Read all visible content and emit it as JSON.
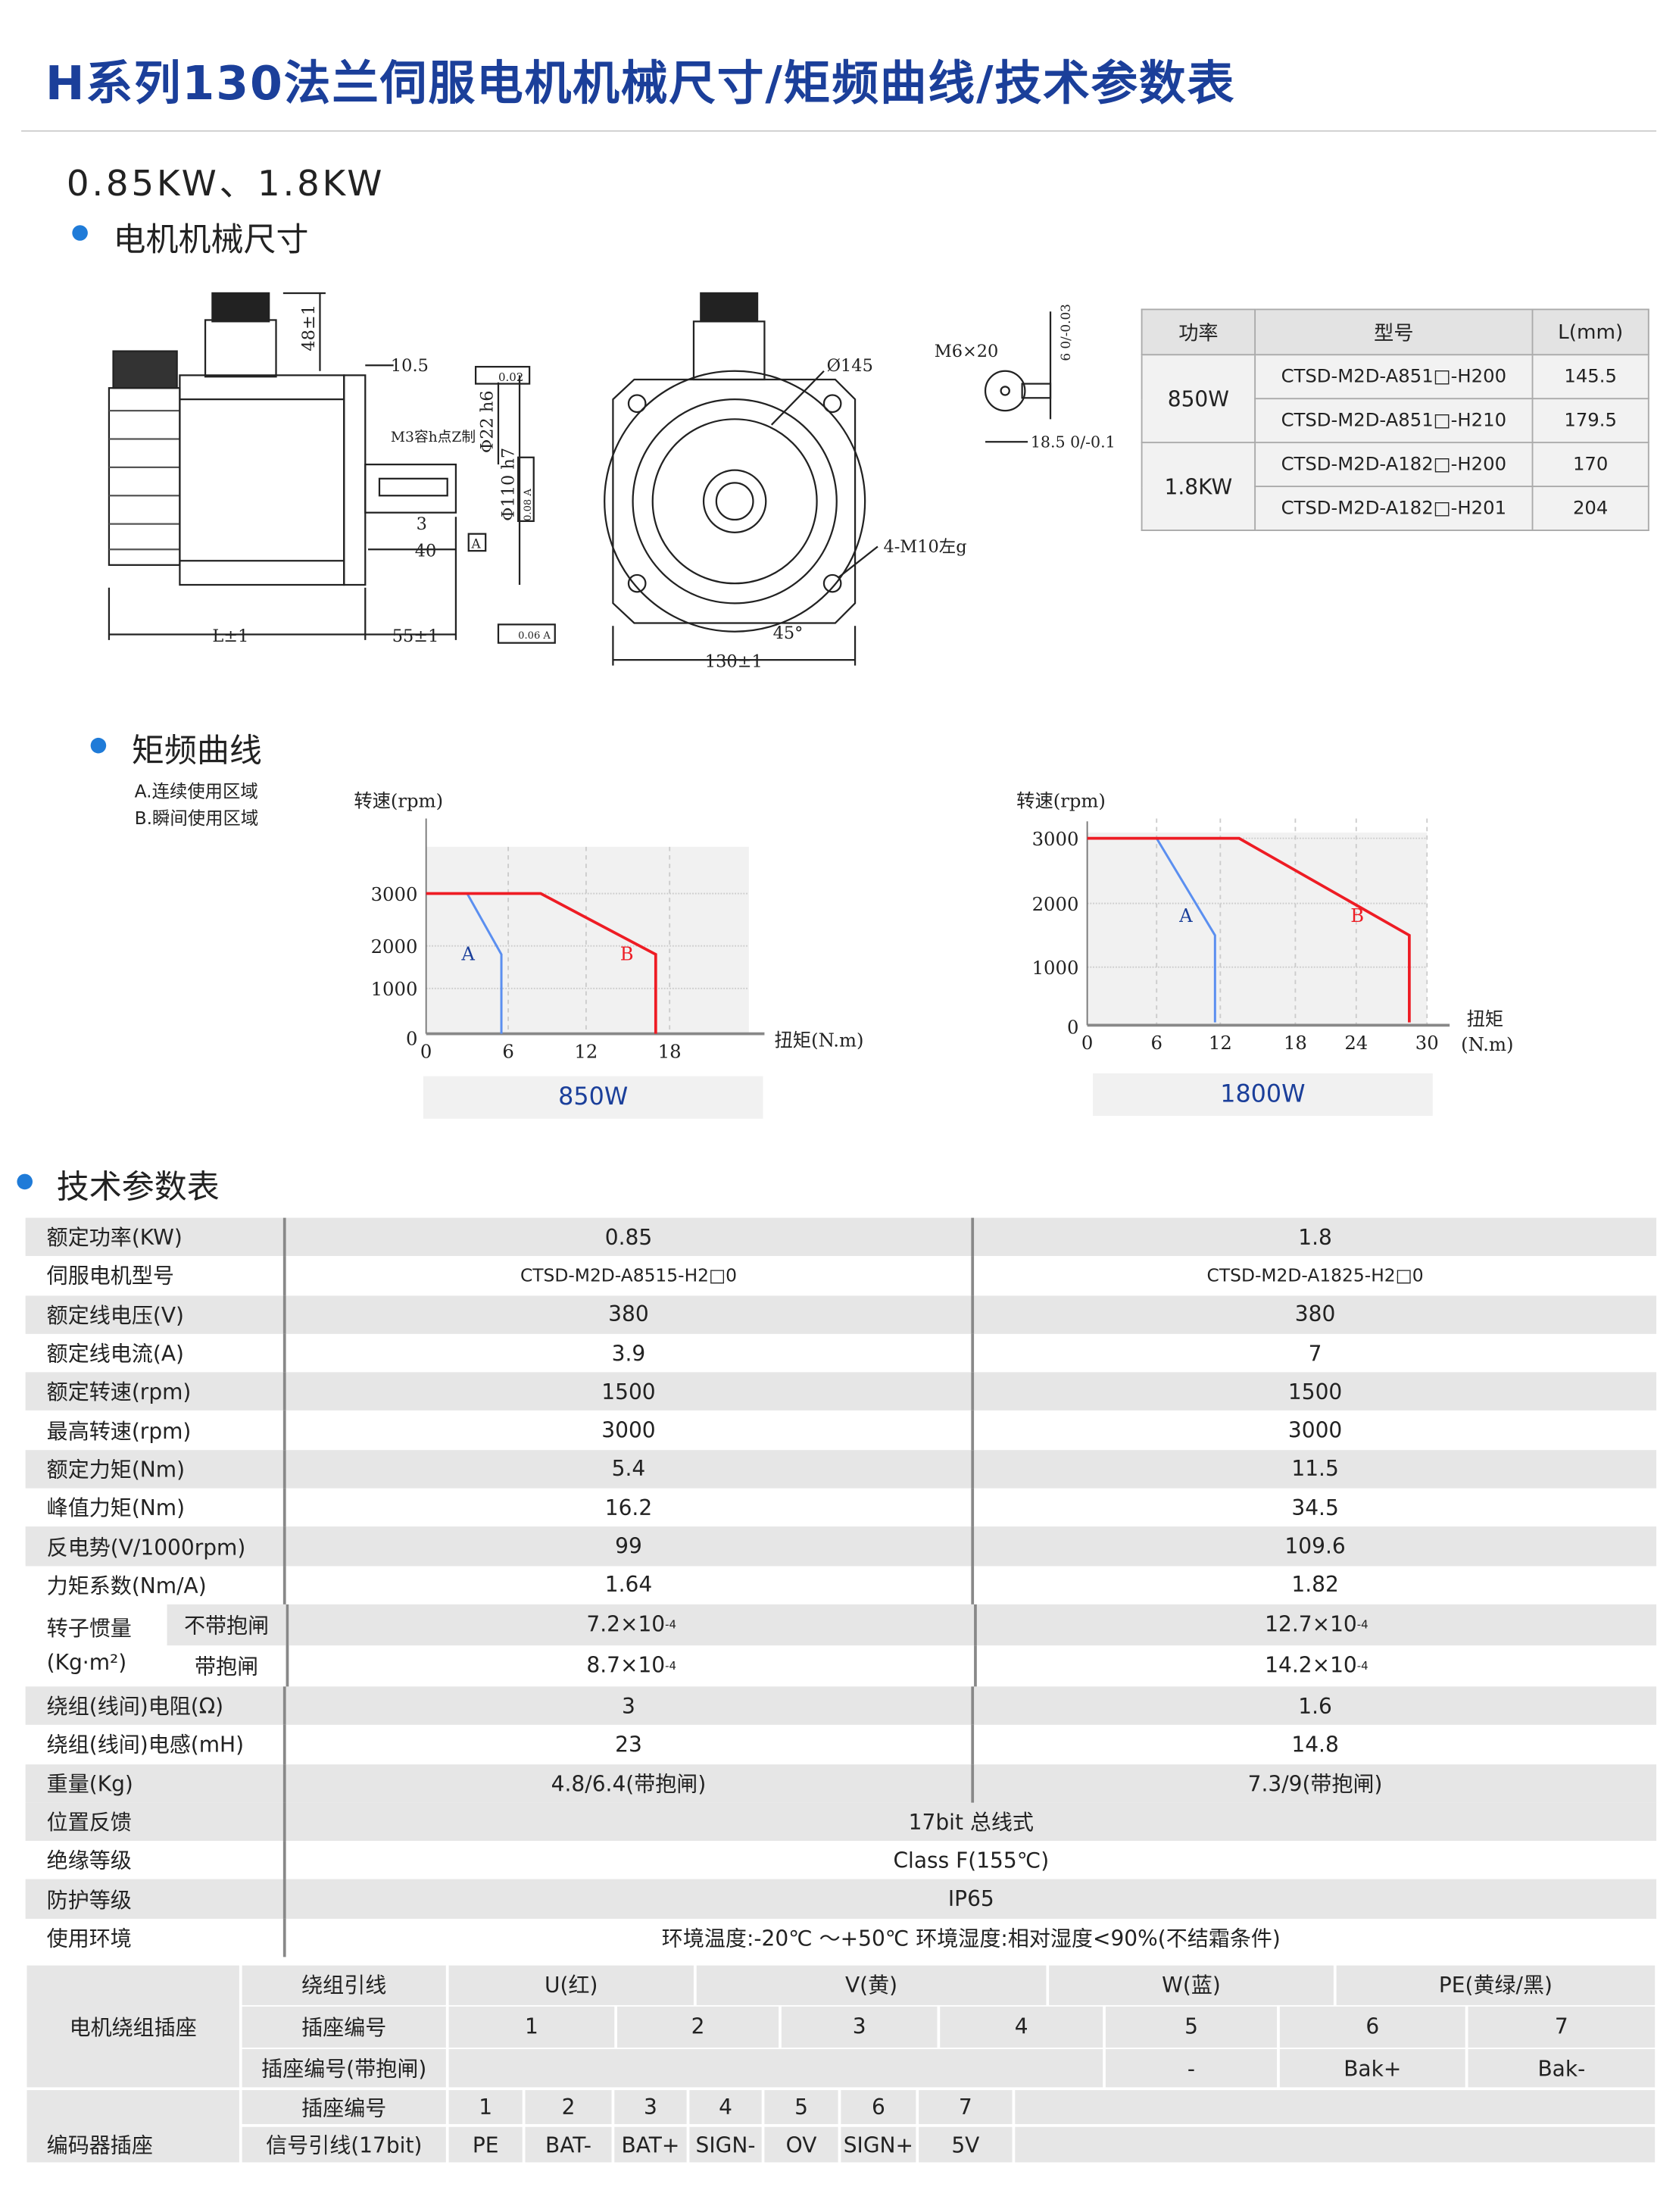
{
  "title": "H系列130法兰伺服电机机械尺寸/矩频曲线/技术参数表",
  "subtitle": "0.85KW、1.8KW",
  "colors": {
    "accent": "#1b3f9a",
    "bullet": "#1f7bd8",
    "curve_a": "#5b8ff0",
    "curve_b": "#ee1c24",
    "row_gray": "#e6e6e6"
  },
  "sections": {
    "dimensions": "电机机械尺寸",
    "curves": "矩频曲线",
    "specs": "技术参数表"
  },
  "drawing": {
    "side": {
      "h48": "48±1",
      "d10_5": "10.5",
      "tol002": "0.02",
      "m3": "M3容h点Z制",
      "phi22": "Φ22 h6",
      "phi110": "Φ110 h7",
      "tol008": "0.08 A",
      "d3": "3",
      "d40": "40",
      "datum": "A",
      "L": "L±1",
      "d55": "55±1",
      "tol006": "0.06 A"
    },
    "front": {
      "phi145": "Ø145",
      "holes": "4-M10左g",
      "angle": "45°",
      "d130": "130±1"
    },
    "shaft": {
      "thread": "M6×20",
      "key": "6 0/-0.03",
      "d18": "18.5 0/-0.1"
    }
  },
  "dim_table": {
    "headers": [
      "功率",
      "型号",
      "L(mm)"
    ],
    "groups": [
      {
        "power": "850W",
        "rows": [
          [
            "CTSD-M2D-A851□-H200",
            "145.5"
          ],
          [
            "CTSD-M2D-A851□-H210",
            "179.5"
          ]
        ]
      },
      {
        "power": "1.8KW",
        "rows": [
          [
            "CTSD-M2D-A182□-H200",
            "170"
          ],
          [
            "CTSD-M2D-A182□-H201",
            "204"
          ]
        ]
      }
    ]
  },
  "curves_legend": [
    "A.连续使用区域",
    "B.瞬间使用区域"
  ],
  "chart_data": [
    {
      "type": "line",
      "title": "850W",
      "ylabel": "转速(rpm)",
      "xlabel": "扭矩(N.m)",
      "x_ticks": [
        0,
        6,
        12,
        18
      ],
      "y_ticks": [
        0,
        1000,
        2000,
        3000
      ],
      "grid": true,
      "series": [
        {
          "name": "A",
          "points": [
            [
              0,
              3000
            ],
            [
              3,
              3000
            ],
            [
              5.5,
              1800
            ],
            [
              5.5,
              0
            ]
          ]
        },
        {
          "name": "B",
          "points": [
            [
              0,
              3000
            ],
            [
              8.5,
              3000
            ],
            [
              17,
              1800
            ],
            [
              17,
              0
            ]
          ]
        }
      ]
    },
    {
      "type": "line",
      "title": "1800W",
      "ylabel": "转速(rpm)",
      "xlabel": "扭矩",
      "xlabel2": "(N.m)",
      "x_ticks": [
        0,
        6,
        12,
        18,
        24,
        30
      ],
      "y_ticks": [
        0,
        1000,
        2000,
        3000
      ],
      "grid": true,
      "series": [
        {
          "name": "A",
          "points": [
            [
              0,
              3000
            ],
            [
              6,
              3000
            ],
            [
              11.5,
              1500
            ],
            [
              11.5,
              0
            ]
          ]
        },
        {
          "name": "B",
          "points": [
            [
              0,
              3000
            ],
            [
              13.5,
              3000
            ],
            [
              28.5,
              1500
            ],
            [
              28.5,
              0
            ]
          ]
        }
      ]
    }
  ],
  "specs": {
    "rows": [
      [
        "额定功率(KW)",
        "0.85",
        "1.8"
      ],
      [
        "伺服电机型号",
        "CTSD-M2D-A8515-H2□0",
        "CTSD-M2D-A1825-H2□0"
      ],
      [
        "额定线电压(V)",
        "380",
        "380"
      ],
      [
        "额定线电流(A)",
        "3.9",
        "7"
      ],
      [
        "额定转速(rpm)",
        "1500",
        "1500"
      ],
      [
        "最高转速(rpm)",
        "3000",
        "3000"
      ],
      [
        "额定力矩(Nm)",
        "5.4",
        "11.5"
      ],
      [
        "峰值力矩(Nm)",
        "16.2",
        "34.5"
      ],
      [
        "反电势(V/1000rpm)",
        "99",
        "109.6"
      ],
      [
        "力矩系数(Nm/A)",
        "1.64",
        "1.82"
      ]
    ],
    "inertia": {
      "label1": "转子惯量",
      "label2": "(Kg·m²)",
      "sub1": "不带抱闸",
      "sub2": "带抱闸",
      "v1a": "7.2×10",
      "v2a": "12.7×10",
      "v1b": "8.7×10",
      "v2b": "14.2×10",
      "exp": "-4"
    },
    "rows2": [
      [
        "绕组(线间)电阻(Ω)",
        "3",
        "1.6"
      ],
      [
        "绕组(线间)电感(mH)",
        "23",
        "14.8"
      ],
      [
        "重量(Kg)",
        "4.8/6.4(带抱闸)",
        "7.3/9(带抱闸)"
      ]
    ],
    "shared": [
      [
        "位置反馈",
        "17bit 总线式"
      ],
      [
        "绝缘等级",
        "Class F(155℃)"
      ],
      [
        "防护等级",
        "IP65"
      ],
      [
        "使用环境",
        "环境温度:-20℃ ～+50℃   环境湿度:相对湿度<90%(不结霜条件)"
      ]
    ]
  },
  "winding": {
    "title": "电机绕组插座",
    "row1": [
      "绕组引线",
      "U(红)",
      "V(黄)",
      "W(蓝)",
      "PE(黄绿/黑)"
    ],
    "row2": [
      "插座编号",
      "1",
      "2",
      "3",
      "4",
      "5",
      "6",
      "7"
    ],
    "row3": [
      "插座编号(带抱闸)",
      "",
      "-",
      "Bak+",
      "Bak-"
    ]
  },
  "encoder": {
    "title": "编码器插座",
    "row1": [
      "插座编号",
      "1",
      "2",
      "3",
      "4",
      "5",
      "6",
      "7",
      ""
    ],
    "row2": [
      "信号引线(17bit)",
      "PE",
      "BAT-",
      "BAT+",
      "SIGN-",
      "OV",
      "SIGN+",
      "5V",
      ""
    ]
  }
}
